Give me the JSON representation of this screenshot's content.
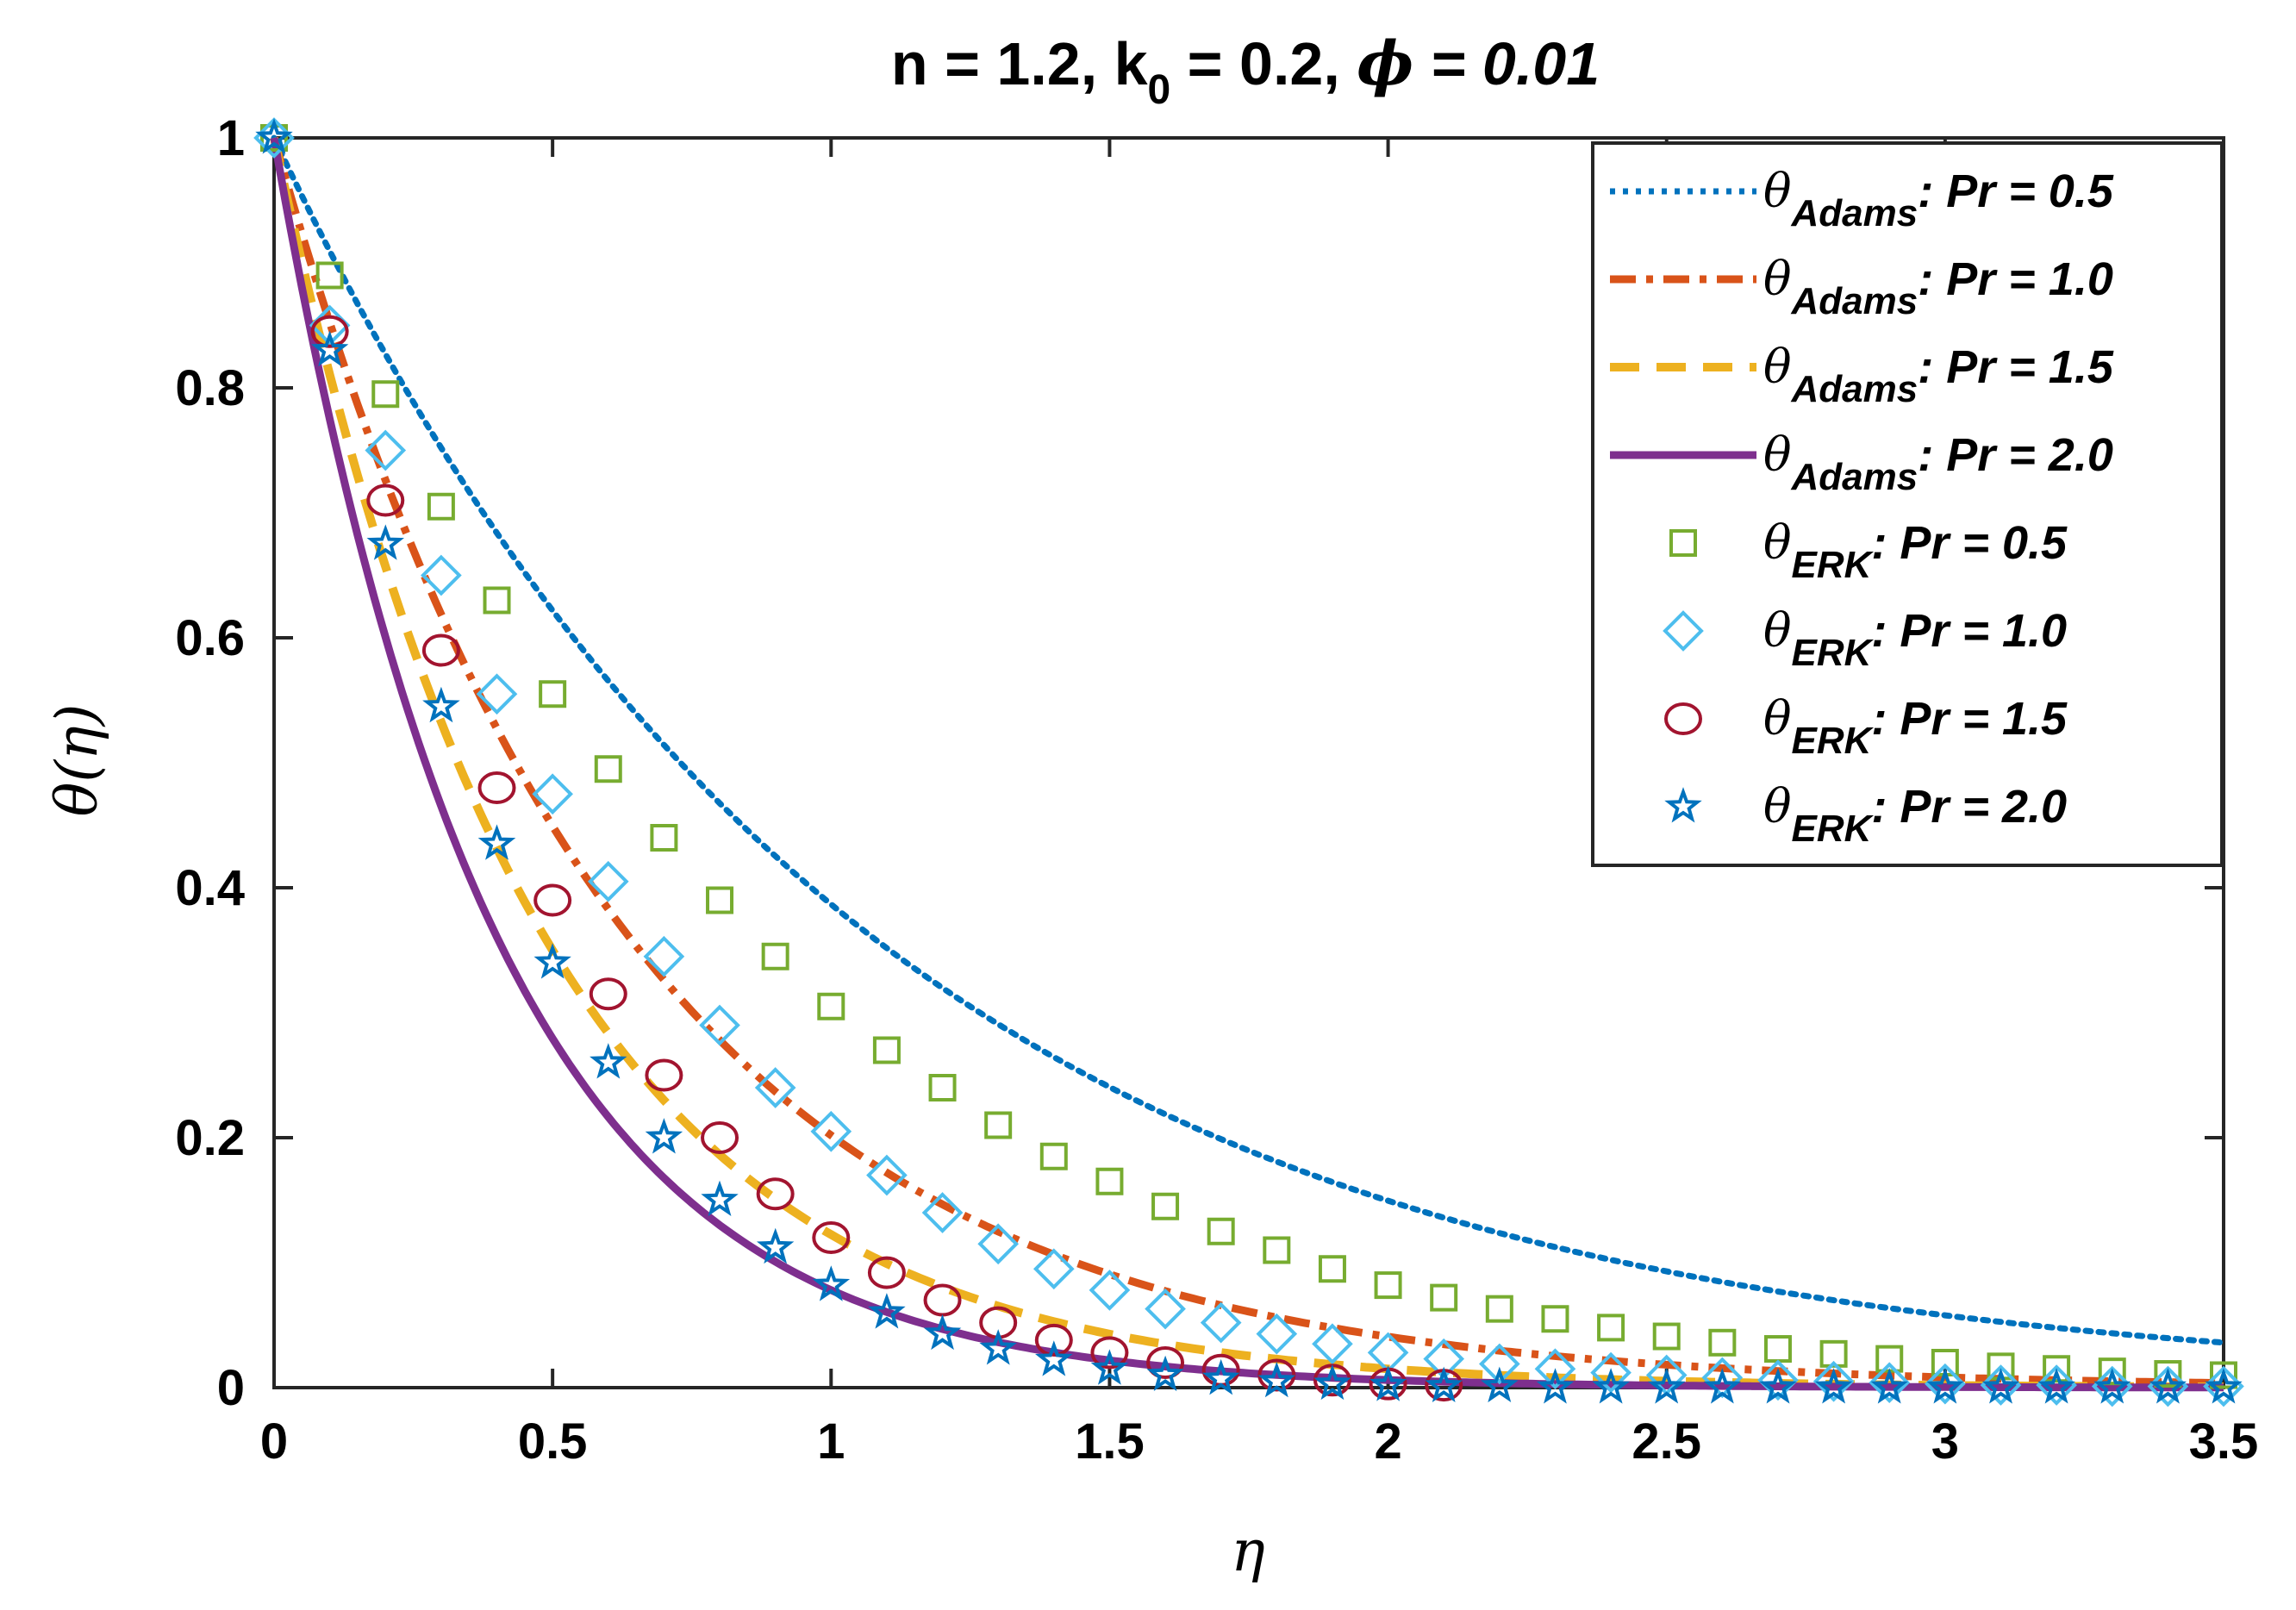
{
  "chart_data": {
    "type": "line",
    "title_parts": [
      "n = 1.2, k",
      "0",
      " = 0.2, ",
      "ϕ",
      " = 0.01"
    ],
    "xlabel": "η",
    "ylabel": "θ(η)",
    "xlim": [
      0,
      3.5
    ],
    "ylim": [
      0,
      1
    ],
    "xticks": [
      0,
      0.5,
      1,
      1.5,
      2,
      2.5,
      3,
      3.5
    ],
    "xtick_labels": [
      "0",
      "0.5",
      "1",
      "1.5",
      "2",
      "2.5",
      "3",
      "3.5"
    ],
    "yticks": [
      0,
      0.2,
      0.4,
      0.6,
      0.8,
      1
    ],
    "ytick_labels": [
      "0",
      "0.2",
      "0.4",
      "0.6",
      "0.8",
      "1"
    ],
    "legend_position": "top-right",
    "line_series": [
      {
        "symbol": "θ",
        "subscript": "Adams",
        "label": ": Pr = 0.5",
        "style": "dotted",
        "color": "#0072BD",
        "decay": 0.95
      },
      {
        "symbol": "θ",
        "subscript": "Adams",
        "label": ": Pr = 1.0",
        "style": "dashdot",
        "color": "#D95319",
        "decay": 1.6
      },
      {
        "symbol": "θ",
        "subscript": "Adams",
        "label": ": Pr = 1.5",
        "style": "dashed",
        "color": "#EDB120",
        "decay": 2.1
      },
      {
        "symbol": "θ",
        "subscript": "Adams",
        "label": ": Pr = 2.0",
        "style": "solid",
        "color": "#7E2F8E",
        "decay": 2.55
      }
    ],
    "marker_series": [
      {
        "symbol": "θ",
        "subscript": "ERK",
        "label": ": Pr = 0.5",
        "marker": "square",
        "color": "#77AC30",
        "x": [
          0,
          0.1,
          0.2,
          0.3,
          0.4,
          0.5,
          0.6,
          0.7,
          0.8,
          0.9,
          1.0,
          1.1,
          1.2,
          1.3,
          1.4,
          1.5,
          1.6,
          1.7,
          1.8,
          1.9,
          2.0,
          2.1,
          2.2,
          2.3,
          2.4,
          2.5,
          2.6,
          2.7,
          2.8,
          2.9,
          3.0,
          3.1,
          3.2,
          3.3,
          3.4,
          3.5
        ],
        "y": [
          1.0,
          0.89,
          0.795,
          0.705,
          0.63,
          0.555,
          0.495,
          0.44,
          0.39,
          0.345,
          0.305,
          0.27,
          0.24,
          0.21,
          0.185,
          0.165,
          0.145,
          0.125,
          0.11,
          0.095,
          0.082,
          0.072,
          0.063,
          0.055,
          0.048,
          0.041,
          0.036,
          0.031,
          0.027,
          0.023,
          0.02,
          0.017,
          0.015,
          0.013,
          0.011,
          0.01
        ]
      },
      {
        "symbol": "θ",
        "subscript": "ERK",
        "label": ": Pr = 1.0",
        "marker": "diamond",
        "color": "#4DBEEE",
        "x": [
          0,
          0.1,
          0.2,
          0.3,
          0.4,
          0.5,
          0.6,
          0.7,
          0.8,
          0.9,
          1.0,
          1.1,
          1.2,
          1.3,
          1.4,
          1.5,
          1.6,
          1.7,
          1.8,
          1.9,
          2.0,
          2.1,
          2.2,
          2.3,
          2.4,
          2.5,
          2.6,
          2.7,
          2.8,
          2.9,
          3.0,
          3.1,
          3.2,
          3.3,
          3.4,
          3.5
        ],
        "y": [
          1.0,
          0.85,
          0.75,
          0.65,
          0.555,
          0.475,
          0.405,
          0.345,
          0.29,
          0.24,
          0.205,
          0.17,
          0.14,
          0.115,
          0.095,
          0.078,
          0.063,
          0.052,
          0.043,
          0.035,
          0.028,
          0.023,
          0.019,
          0.015,
          0.012,
          0.01,
          0.008,
          0.006,
          0.005,
          0.004,
          0.003,
          0.002,
          0.002,
          0.001,
          0.001,
          0.001
        ]
      },
      {
        "symbol": "θ",
        "subscript": "ERK",
        "label": ": Pr = 1.5",
        "marker": "circle",
        "color": "#A2142F",
        "x": [
          0.1,
          0.2,
          0.3,
          0.4,
          0.5,
          0.6,
          0.7,
          0.8,
          0.9,
          1.0,
          1.1,
          1.2,
          1.3,
          1.4,
          1.5,
          1.6,
          1.7,
          1.8,
          1.9,
          2.0,
          2.1
        ],
        "y": [
          0.845,
          0.71,
          0.59,
          0.48,
          0.39,
          0.315,
          0.25,
          0.2,
          0.155,
          0.12,
          0.092,
          0.07,
          0.052,
          0.038,
          0.028,
          0.02,
          0.014,
          0.01,
          0.006,
          0.003,
          0.002
        ]
      },
      {
        "symbol": "θ",
        "subscript": "ERK",
        "label": ": Pr = 2.0",
        "marker": "star",
        "color": "#0072BD",
        "x": [
          0,
          0.1,
          0.2,
          0.3,
          0.4,
          0.5,
          0.6,
          0.7,
          0.8,
          0.9,
          1.0,
          1.1,
          1.2,
          1.3,
          1.4,
          1.5,
          1.6,
          1.7,
          1.8,
          1.9,
          2.0,
          2.1,
          2.2,
          2.3,
          2.4,
          2.5,
          2.6,
          2.7,
          2.8,
          2.9,
          3.0,
          3.1,
          3.2,
          3.3,
          3.4,
          3.5
        ],
        "y": [
          1.0,
          0.83,
          0.675,
          0.545,
          0.435,
          0.34,
          0.26,
          0.2,
          0.15,
          0.112,
          0.082,
          0.06,
          0.043,
          0.031,
          0.022,
          0.015,
          0.01,
          0.007,
          0.005,
          0.003,
          0.002,
          0.001,
          0.001,
          0,
          0,
          0,
          0,
          0,
          0,
          0,
          0,
          0,
          0,
          0,
          0,
          0
        ]
      }
    ]
  }
}
